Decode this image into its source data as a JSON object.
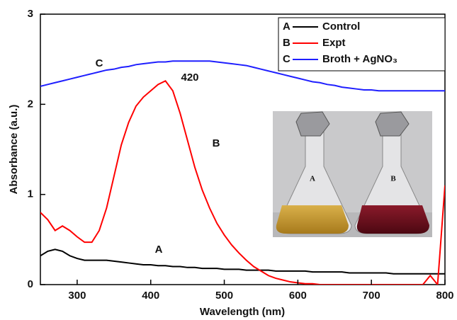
{
  "chart_data": {
    "type": "line",
    "x_label": "Wavelength (nm)",
    "y_label": "Absorbance (a.u.)",
    "xlim": [
      250,
      800
    ],
    "xticks": [
      300,
      400,
      500,
      600,
      700,
      800
    ],
    "ylim": [
      0,
      3
    ],
    "yticks": [
      0,
      1,
      2,
      3
    ],
    "legend": "upper right",
    "x": [
      250,
      260,
      270,
      280,
      290,
      300,
      310,
      320,
      330,
      340,
      350,
      360,
      370,
      380,
      390,
      400,
      410,
      420,
      430,
      440,
      450,
      460,
      470,
      480,
      490,
      500,
      510,
      520,
      530,
      540,
      550,
      560,
      570,
      580,
      590,
      600,
      610,
      620,
      630,
      640,
      650,
      660,
      670,
      680,
      690,
      700,
      710,
      720,
      730,
      740,
      750,
      760,
      770,
      780,
      790,
      800
    ],
    "series": [
      {
        "label": "A",
        "name": "Control",
        "color": "#000000",
        "values": [
          0.32,
          0.37,
          0.39,
          0.37,
          0.32,
          0.29,
          0.27,
          0.27,
          0.27,
          0.27,
          0.26,
          0.25,
          0.24,
          0.23,
          0.22,
          0.22,
          0.21,
          0.21,
          0.2,
          0.2,
          0.19,
          0.19,
          0.18,
          0.18,
          0.18,
          0.17,
          0.17,
          0.17,
          0.16,
          0.16,
          0.16,
          0.16,
          0.15,
          0.15,
          0.15,
          0.15,
          0.15,
          0.14,
          0.14,
          0.14,
          0.14,
          0.14,
          0.13,
          0.13,
          0.13,
          0.13,
          0.13,
          0.13,
          0.12,
          0.12,
          0.12,
          0.12,
          0.12,
          0.12,
          0.12,
          0.12
        ]
      },
      {
        "label": "B",
        "name": "Expt",
        "color": "#ff0000",
        "values": [
          0.8,
          0.72,
          0.6,
          0.65,
          0.6,
          0.53,
          0.47,
          0.47,
          0.6,
          0.85,
          1.2,
          1.55,
          1.8,
          1.98,
          2.08,
          2.15,
          2.22,
          2.26,
          2.15,
          1.9,
          1.6,
          1.3,
          1.05,
          0.85,
          0.68,
          0.55,
          0.44,
          0.35,
          0.27,
          0.2,
          0.15,
          0.1,
          0.07,
          0.05,
          0.03,
          0.02,
          0.01,
          0.01,
          0,
          0,
          0,
          0,
          0,
          0,
          0,
          0,
          0,
          0,
          0,
          0,
          0,
          0,
          0,
          0.1,
          0,
          1.1
        ]
      },
      {
        "label": "C",
        "name": "Broth + AgNO₃",
        "color": "#1f1fff",
        "values": [
          2.2,
          2.22,
          2.24,
          2.26,
          2.28,
          2.3,
          2.32,
          2.34,
          2.36,
          2.38,
          2.39,
          2.41,
          2.42,
          2.44,
          2.45,
          2.46,
          2.47,
          2.47,
          2.48,
          2.48,
          2.48,
          2.48,
          2.48,
          2.48,
          2.47,
          2.46,
          2.45,
          2.44,
          2.43,
          2.41,
          2.39,
          2.37,
          2.35,
          2.33,
          2.31,
          2.29,
          2.27,
          2.25,
          2.24,
          2.22,
          2.21,
          2.19,
          2.18,
          2.17,
          2.16,
          2.16,
          2.15,
          2.15,
          2.15,
          2.15,
          2.15,
          2.15,
          2.15,
          2.15,
          2.15,
          2.15
        ]
      }
    ],
    "annotations": [
      "C",
      "420",
      "B",
      "A"
    ],
    "inset_labels": [
      "A",
      "B"
    ]
  }
}
